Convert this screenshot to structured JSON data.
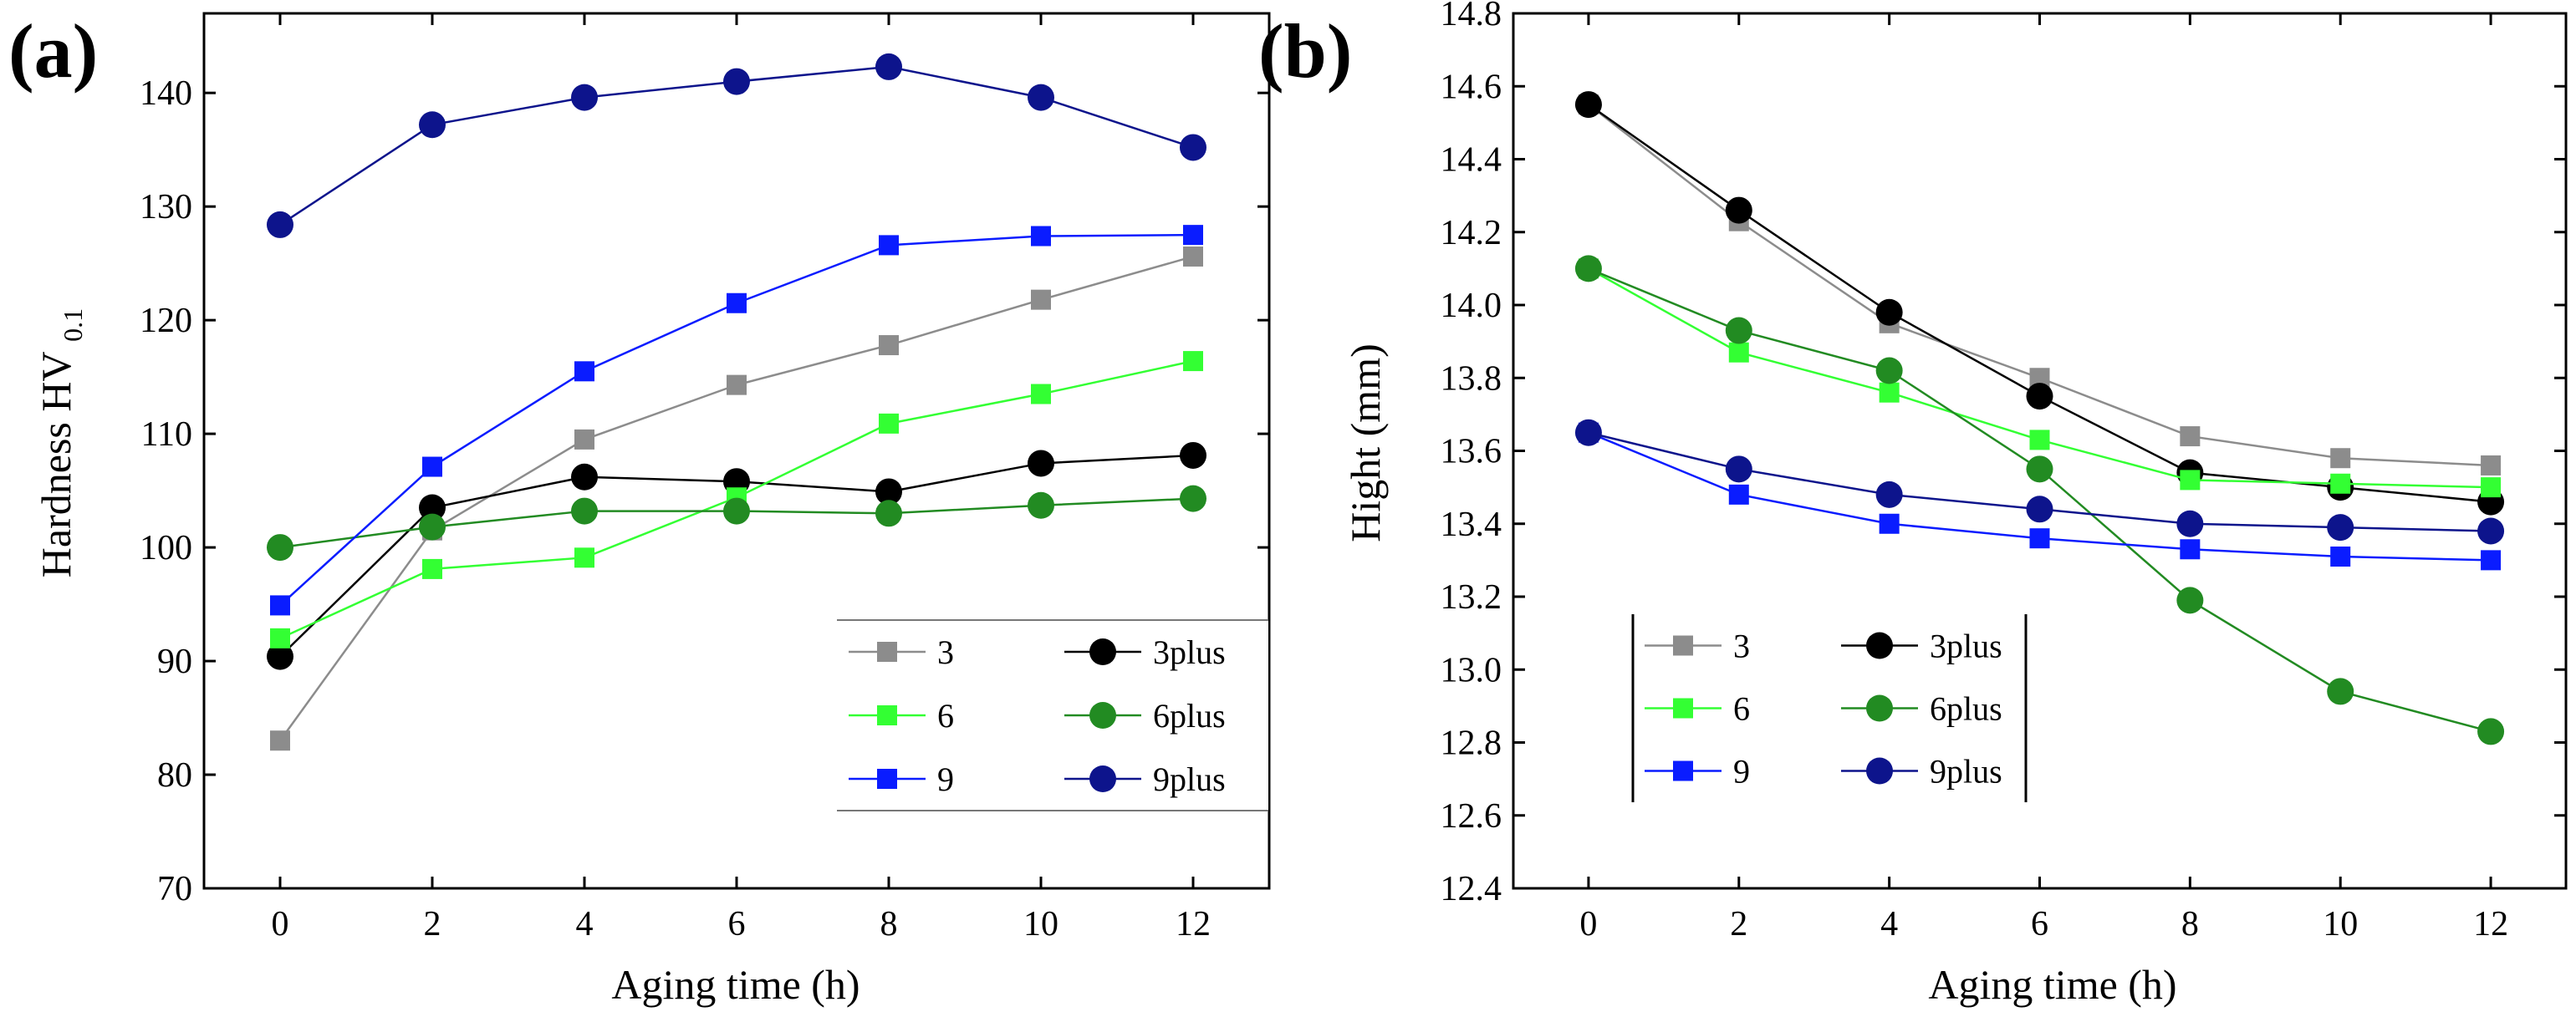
{
  "chart_data": [
    {
      "panel_label": "(a)",
      "type": "line",
      "xlabel": "Aging time (h)",
      "ylabel_main": "Hardness HV",
      "ylabel_sub": "0.1",
      "xlim": [
        -1,
        13
      ],
      "ylim": [
        70,
        147
      ],
      "xticks": [
        0,
        2,
        4,
        6,
        8,
        10,
        12
      ],
      "yticks": [
        70,
        80,
        90,
        100,
        110,
        120,
        130,
        140
      ],
      "x": [
        0,
        2,
        4,
        6,
        8,
        10,
        12
      ],
      "legend_position": "lower-right",
      "series": [
        {
          "name": "3",
          "marker": "square",
          "color": "#8c8c8c",
          "values": [
            83,
            101.5,
            109.5,
            114.3,
            117.8,
            121.8,
            125.6
          ]
        },
        {
          "name": "3plus",
          "marker": "circle",
          "color": "#000000",
          "values": [
            90.4,
            103.5,
            106.2,
            105.8,
            104.9,
            107.4,
            108.1
          ]
        },
        {
          "name": "6",
          "marker": "square",
          "color": "#33ff33",
          "values": [
            92,
            98.1,
            99.1,
            104.4,
            110.9,
            113.5,
            116.4
          ]
        },
        {
          "name": "6plus",
          "marker": "circle",
          "color": "#228b22",
          "values": [
            100,
            101.8,
            103.2,
            103.2,
            103,
            103.7,
            104.3
          ]
        },
        {
          "name": "9",
          "marker": "square",
          "color": "#0a1cff",
          "values": [
            94.9,
            107.1,
            115.5,
            121.5,
            126.6,
            127.4,
            127.5
          ]
        },
        {
          "name": "9plus",
          "marker": "circle",
          "color": "#0d148c",
          "values": [
            128.4,
            137.2,
            139.6,
            141,
            142.3,
            139.6,
            135.2
          ]
        }
      ]
    },
    {
      "panel_label": "(b)",
      "type": "line",
      "xlabel": "Aging time (h)",
      "ylabel": "Hight (mm)",
      "xlim": [
        -1,
        13
      ],
      "ylim": [
        12.4,
        14.8
      ],
      "xticks": [
        0,
        2,
        4,
        6,
        8,
        10,
        12
      ],
      "yticks": [
        12.4,
        12.6,
        12.8,
        13.0,
        13.2,
        13.4,
        13.6,
        13.8,
        14.0,
        14.2,
        14.4,
        14.6,
        14.8
      ],
      "ytick_labels": [
        "12.4",
        "12.6",
        "12.8",
        "13.0",
        "13.2",
        "13.4",
        "13.6",
        "13.8",
        "14.0",
        "14.2",
        "14.4",
        "14.6",
        "14.8"
      ],
      "x": [
        0,
        2,
        4,
        6,
        8,
        10,
        12
      ],
      "legend_position": "lower-left",
      "series": [
        {
          "name": "3",
          "marker": "square",
          "color": "#8c8c8c",
          "values": [
            14.55,
            14.23,
            13.95,
            13.8,
            13.64,
            13.58,
            13.56
          ]
        },
        {
          "name": "3plus",
          "marker": "circle",
          "color": "#000000",
          "values": [
            14.55,
            14.26,
            13.98,
            13.75,
            13.54,
            13.5,
            13.46
          ]
        },
        {
          "name": "6",
          "marker": "square",
          "color": "#33ff33",
          "values": [
            14.1,
            13.87,
            13.76,
            13.63,
            13.52,
            13.51,
            13.5
          ]
        },
        {
          "name": "6plus",
          "marker": "circle",
          "color": "#228b22",
          "values": [
            14.1,
            13.93,
            13.82,
            13.55,
            13.19,
            12.94,
            12.83
          ]
        },
        {
          "name": "9",
          "marker": "square",
          "color": "#0a1cff",
          "values": [
            13.65,
            13.48,
            13.4,
            13.36,
            13.33,
            13.31,
            13.3
          ]
        },
        {
          "name": "9plus",
          "marker": "circle",
          "color": "#0d148c",
          "values": [
            13.65,
            13.55,
            13.48,
            13.44,
            13.4,
            13.39,
            13.38
          ]
        }
      ]
    }
  ]
}
